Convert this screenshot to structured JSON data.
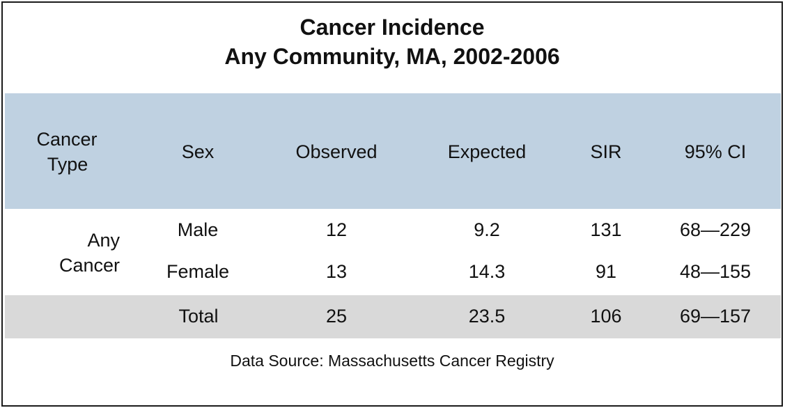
{
  "title": {
    "line1": "Cancer Incidence",
    "line2": "Any Community, MA, 2002-2006"
  },
  "header": {
    "cancer_type_line1": "Cancer",
    "cancer_type_line2": "Type",
    "sex": "Sex",
    "observed": "Observed",
    "expected": "Expected",
    "sir": "SIR",
    "ci": "95% CI"
  },
  "group": {
    "cancer_line1": "Any",
    "cancer_line2": "Cancer"
  },
  "rows": [
    {
      "sex": "Male",
      "observed": "12",
      "expected": "9.2",
      "sir": "131",
      "ci": "68—229"
    },
    {
      "sex": "Female",
      "observed": "13",
      "expected": "14.3",
      "sir": "91",
      "ci": "48—155"
    }
  ],
  "total": {
    "sex": "Total",
    "observed": "25",
    "expected": "23.5",
    "sir": "106",
    "ci": "69—157"
  },
  "source": "Data Source: Massachusetts Cancer Registry",
  "colors": {
    "header_band": "#bfd1e1",
    "total_band": "#d9d9d9",
    "border": "#1a1a1a"
  }
}
